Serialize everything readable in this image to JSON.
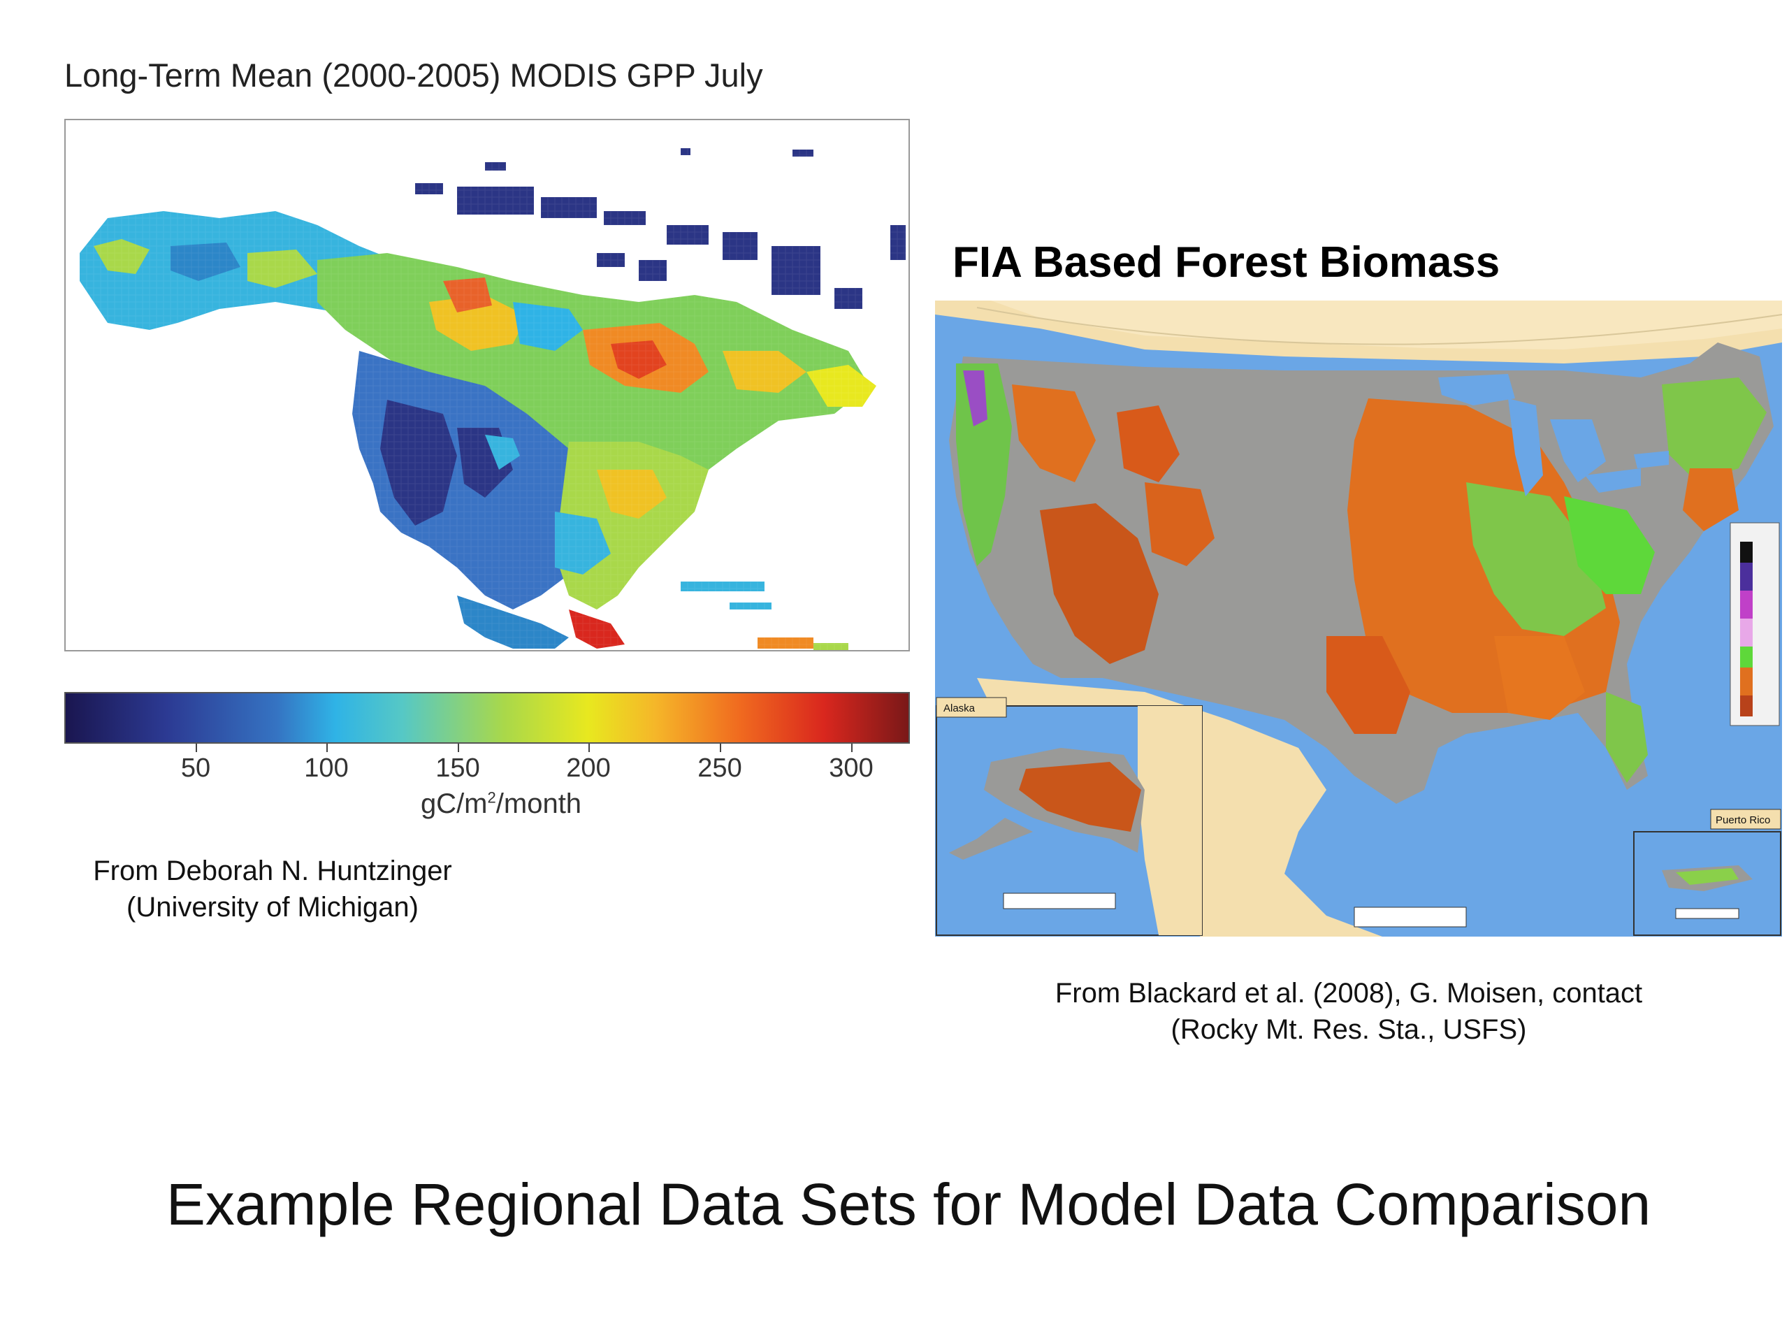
{
  "gpp_panel": {
    "title": "Long-Term Mean (2000-2005) MODIS GPP July",
    "colorbar": {
      "ticks": [
        "50",
        "100",
        "150",
        "200",
        "250",
        "300"
      ],
      "unit_prefix": "gC/m",
      "unit_sup": "2",
      "unit_suffix": "/month",
      "colors": [
        "#1a1650",
        "#2c3a93",
        "#2fb3e6",
        "#a9d84a",
        "#e8e81f",
        "#f06a1f",
        "#d9271e",
        "#7a1818"
      ]
    },
    "credit_line1": "From Deborah N. Huntzinger",
    "credit_line2": "(University of Michigan)"
  },
  "fia_panel": {
    "title": "FIA Based Forest Biomass",
    "insets": {
      "alaska": "Alaska",
      "puerto_rico": "Puerto Rico"
    },
    "credit_line1": "From Blackard et al. (2008), G. Moisen, contact",
    "credit_line2": "(Rocky Mt. Res. Sta., USFS)"
  },
  "slide_title": "Example Regional Data Sets for Model Data Comparison"
}
